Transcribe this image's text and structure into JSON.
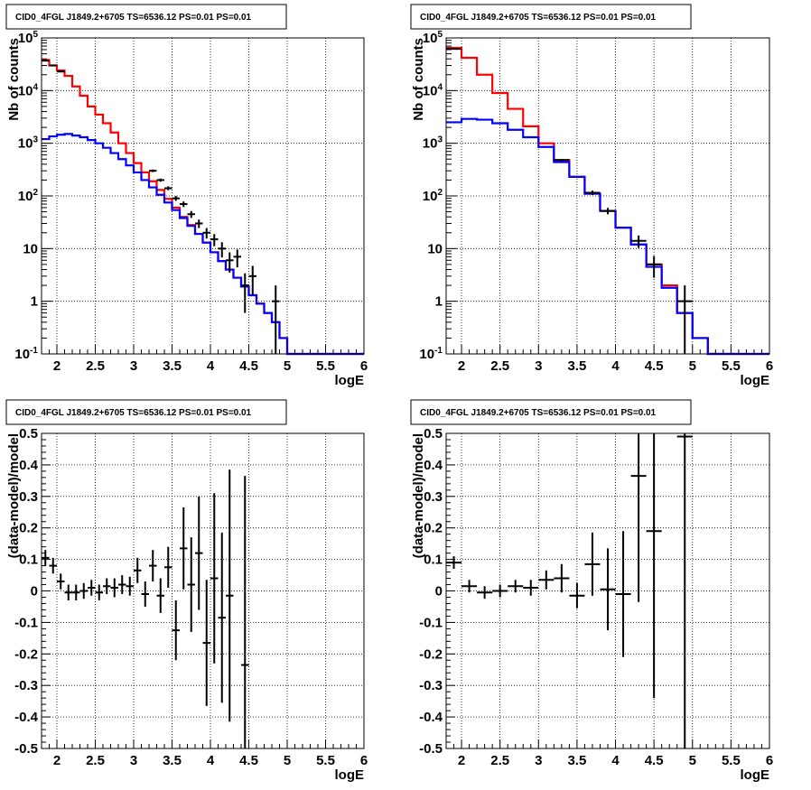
{
  "colors": {
    "model_total": "#ff0000",
    "model_source": "#0000ff",
    "data": "#000000",
    "grid": "#000000"
  },
  "chart_data": [
    {
      "type": "line",
      "title": "CID0_4FGL J1849.2+6705 TS=6536.12 PS=0.01 PS=0.01",
      "xlabel": "logE",
      "ylabel": "Nb of counts",
      "xlim": [
        1.8,
        6.0
      ],
      "ylim": [
        0.1,
        100000
      ],
      "yscale": "log",
      "grid": true,
      "x_ticks": [
        "2",
        "2.5",
        "3",
        "3.5",
        "4",
        "4.5",
        "5",
        "5.5",
        "6"
      ],
      "y_ticks": [
        "10^-1",
        "1",
        "10",
        "10^2",
        "10^3",
        "10^4",
        "10^5"
      ],
      "bin_width": 0.1,
      "series": [
        {
          "color": "red",
          "x": [
            1.85,
            1.95,
            2.05,
            2.15,
            2.25,
            2.35,
            2.45,
            2.55,
            2.65,
            2.75,
            2.85,
            2.95,
            3.05,
            3.15,
            3.25,
            3.35,
            3.45,
            3.55,
            3.65,
            3.75,
            3.85,
            3.95,
            4.05,
            4.15,
            4.25,
            4.35,
            4.45,
            4.55,
            4.65,
            4.75,
            4.85,
            4.95,
            5.05,
            5.15,
            5.25,
            5.35,
            5.45,
            5.55,
            5.65,
            5.75,
            5.85,
            5.95
          ],
          "values": [
            38000,
            30000,
            24000,
            19000,
            12000,
            8000,
            5000,
            3500,
            2400,
            1600,
            1000,
            650,
            420,
            280,
            190,
            130,
            88,
            60,
            40,
            28,
            19,
            13,
            8.5,
            5.8,
            4.0,
            2.8,
            1.9,
            1.3,
            0.9,
            0.6,
            0.4,
            0.2,
            0.1,
            0.1,
            0.1,
            0.1,
            0.1,
            0.1,
            0.1,
            0.1,
            0.1,
            0.1
          ]
        },
        {
          "color": "blue",
          "x": [
            1.85,
            1.95,
            2.05,
            2.15,
            2.25,
            2.35,
            2.45,
            2.55,
            2.65,
            2.75,
            2.85,
            2.95,
            3.05,
            3.15,
            3.25,
            3.35,
            3.45,
            3.55,
            3.65,
            3.75,
            3.85,
            3.95,
            4.05,
            4.15,
            4.25,
            4.35,
            4.45,
            4.55,
            4.65,
            4.75,
            4.85,
            4.95,
            5.05,
            5.15,
            5.25,
            5.35,
            5.45,
            5.55,
            5.65,
            5.75,
            5.85,
            5.95
          ],
          "values": [
            1200,
            1350,
            1450,
            1500,
            1400,
            1300,
            1150,
            1000,
            820,
            650,
            500,
            380,
            280,
            200,
            145,
            105,
            75,
            54,
            38,
            27,
            19,
            13,
            8.5,
            5.8,
            4.0,
            2.8,
            1.9,
            1.3,
            0.9,
            0.6,
            0.4,
            0.2,
            0.1,
            0.1,
            0.1,
            0.1,
            0.1,
            0.1,
            0.1,
            0.1,
            0.1,
            0.1
          ]
        }
      ],
      "data_points": [
        {
          "x": 1.85,
          "y": 37000,
          "err": 192
        },
        {
          "x": 1.95,
          "y": 30000,
          "err": 173
        },
        {
          "x": 2.05,
          "y": 23000,
          "err": 152
        },
        {
          "x": 3.25,
          "y": 300,
          "err": 17
        },
        {
          "x": 3.35,
          "y": 200,
          "err": 14
        },
        {
          "x": 3.45,
          "y": 140,
          "err": 12
        },
        {
          "x": 3.55,
          "y": 90,
          "err": 9.5
        },
        {
          "x": 3.65,
          "y": 70,
          "err": 8.4
        },
        {
          "x": 3.75,
          "y": 45,
          "err": 6.7
        },
        {
          "x": 3.85,
          "y": 30,
          "err": 5.5
        },
        {
          "x": 3.95,
          "y": 20,
          "err": 4.5
        },
        {
          "x": 4.05,
          "y": 15,
          "err": 3.9
        },
        {
          "x": 4.15,
          "y": 10,
          "err": 3.2
        },
        {
          "x": 4.25,
          "y": 6,
          "err": 2.5
        },
        {
          "x": 4.35,
          "y": 7,
          "err": 2.6
        },
        {
          "x": 4.45,
          "y": 2,
          "err": 1.4
        },
        {
          "x": 4.55,
          "y": 3,
          "err": 1.7
        },
        {
          "x": 4.85,
          "y": 1,
          "err": 1.0
        }
      ]
    },
    {
      "type": "line",
      "title": "CID0_4FGL J1849.2+6705 TS=6536.12 PS=0.01 PS=0.01",
      "xlabel": "logE",
      "ylabel": "Nb of counts",
      "xlim": [
        1.8,
        6.0
      ],
      "ylim": [
        0.1,
        100000
      ],
      "yscale": "log",
      "grid": true,
      "x_ticks": [
        "2",
        "2.5",
        "3",
        "3.5",
        "4",
        "4.5",
        "5",
        "5.5",
        "6"
      ],
      "y_ticks": [
        "10^-1",
        "1",
        "10",
        "10^2",
        "10^3",
        "10^4",
        "10^5"
      ],
      "bin_width": 0.2,
      "series": [
        {
          "color": "red",
          "x": [
            1.9,
            2.1,
            2.3,
            2.5,
            2.7,
            2.9,
            3.1,
            3.3,
            3.5,
            3.7,
            3.9,
            4.1,
            4.3,
            4.5,
            4.7,
            4.9,
            5.1,
            5.3,
            5.5,
            5.7,
            5.9
          ],
          "values": [
            65000,
            42000,
            20000,
            9000,
            4500,
            2100,
            1000,
            480,
            230,
            110,
            52,
            25,
            12,
            5,
            2,
            0.6,
            0.2,
            0.1,
            0.1,
            0.1,
            0.1
          ]
        },
        {
          "color": "blue",
          "x": [
            1.9,
            2.1,
            2.3,
            2.5,
            2.7,
            2.9,
            3.1,
            3.3,
            3.5,
            3.7,
            3.9,
            4.1,
            4.3,
            4.5,
            4.7,
            4.9,
            5.1,
            5.3,
            5.5,
            5.7,
            5.9
          ],
          "values": [
            2500,
            2900,
            2800,
            2400,
            1800,
            1300,
            850,
            440,
            230,
            110,
            52,
            25,
            12,
            4.5,
            1.8,
            0.6,
            0.2,
            0.1,
            0.1,
            0.1,
            0.1
          ]
        }
      ],
      "data_points": [
        {
          "x": 1.9,
          "y": 62000,
          "err": 250
        },
        {
          "x": 3.3,
          "y": 480,
          "err": 22
        },
        {
          "x": 3.7,
          "y": 115,
          "err": 11
        },
        {
          "x": 3.9,
          "y": 52,
          "err": 7.2
        },
        {
          "x": 4.3,
          "y": 14,
          "err": 3.7
        },
        {
          "x": 4.5,
          "y": 5,
          "err": 2.2
        },
        {
          "x": 4.9,
          "y": 1,
          "err": 1.0
        }
      ]
    },
    {
      "type": "scatter",
      "title": "CID0_4FGL J1849.2+6705 TS=6536.12 PS=0.01 PS=0.01",
      "xlabel": "logE",
      "ylabel": "(data-model)/model",
      "xlim": [
        1.8,
        6.0
      ],
      "ylim": [
        -0.5,
        0.5
      ],
      "grid": true,
      "x_ticks": [
        "2",
        "2.5",
        "3",
        "3.5",
        "4",
        "4.5",
        "5",
        "5.5",
        "6"
      ],
      "y_ticks": [
        "-0.5",
        "-0.4",
        "-0.3",
        "-0.2",
        "-0.1",
        "0",
        "0.1",
        "0.2",
        "0.3",
        "0.4",
        "0.5"
      ],
      "bin_width": 0.1,
      "data_points": [
        {
          "x": 1.85,
          "y": 0.105,
          "err": 0.025
        },
        {
          "x": 1.95,
          "y": 0.08,
          "err": 0.025
        },
        {
          "x": 2.05,
          "y": 0.03,
          "err": 0.025
        },
        {
          "x": 2.15,
          "y": -0.005,
          "err": 0.025
        },
        {
          "x": 2.25,
          "y": -0.005,
          "err": 0.025
        },
        {
          "x": 2.35,
          "y": 0.0,
          "err": 0.025
        },
        {
          "x": 2.45,
          "y": 0.01,
          "err": 0.025
        },
        {
          "x": 2.55,
          "y": -0.005,
          "err": 0.025
        },
        {
          "x": 2.65,
          "y": 0.015,
          "err": 0.025
        },
        {
          "x": 2.75,
          "y": 0.01,
          "err": 0.03
        },
        {
          "x": 2.85,
          "y": 0.02,
          "err": 0.03
        },
        {
          "x": 2.95,
          "y": 0.015,
          "err": 0.03
        },
        {
          "x": 3.05,
          "y": 0.065,
          "err": 0.04
        },
        {
          "x": 3.15,
          "y": -0.01,
          "err": 0.04
        },
        {
          "x": 3.25,
          "y": 0.08,
          "err": 0.05
        },
        {
          "x": 3.35,
          "y": -0.015,
          "err": 0.055
        },
        {
          "x": 3.45,
          "y": 0.075,
          "err": 0.065
        },
        {
          "x": 3.55,
          "y": -0.125,
          "err": 0.095
        },
        {
          "x": 3.65,
          "y": 0.135,
          "err": 0.13
        },
        {
          "x": 3.75,
          "y": 0.02,
          "err": 0.15
        },
        {
          "x": 3.85,
          "y": 0.12,
          "err": 0.18
        },
        {
          "x": 3.95,
          "y": -0.165,
          "err": 0.2
        },
        {
          "x": 4.05,
          "y": 0.04,
          "err": 0.27
        },
        {
          "x": 4.15,
          "y": -0.085,
          "err": 0.27
        },
        {
          "x": 4.25,
          "y": -0.015,
          "err": 0.4
        },
        {
          "x": 4.45,
          "y": -0.235,
          "err": 0.6
        }
      ]
    },
    {
      "type": "scatter",
      "title": "CID0_4FGL J1849.2+6705 TS=6536.12 PS=0.01 PS=0.01",
      "xlabel": "logE",
      "ylabel": "(data-model)/model",
      "xlim": [
        1.8,
        6.0
      ],
      "ylim": [
        -0.5,
        0.5
      ],
      "grid": true,
      "x_ticks": [
        "2",
        "2.5",
        "3",
        "3.5",
        "4",
        "4.5",
        "5",
        "5.5",
        "6"
      ],
      "y_ticks": [
        "-0.5",
        "-0.4",
        "-0.3",
        "-0.2",
        "-0.1",
        "0",
        "0.1",
        "0.2",
        "0.3",
        "0.4",
        "0.5"
      ],
      "bin_width": 0.2,
      "data_points": [
        {
          "x": 1.9,
          "y": 0.09,
          "err": 0.02
        },
        {
          "x": 2.1,
          "y": 0.015,
          "err": 0.02
        },
        {
          "x": 2.3,
          "y": -0.005,
          "err": 0.02
        },
        {
          "x": 2.5,
          "y": 0.0,
          "err": 0.02
        },
        {
          "x": 2.7,
          "y": 0.015,
          "err": 0.02
        },
        {
          "x": 2.9,
          "y": 0.01,
          "err": 0.025
        },
        {
          "x": 3.1,
          "y": 0.035,
          "err": 0.03
        },
        {
          "x": 3.3,
          "y": 0.04,
          "err": 0.045
        },
        {
          "x": 3.5,
          "y": -0.015,
          "err": 0.04
        },
        {
          "x": 3.7,
          "y": 0.085,
          "err": 0.1
        },
        {
          "x": 3.9,
          "y": 0.005,
          "err": 0.13
        },
        {
          "x": 4.1,
          "y": -0.01,
          "err": 0.2
        },
        {
          "x": 4.3,
          "y": 0.365,
          "err": 0.4
        },
        {
          "x": 4.5,
          "y": 0.19,
          "err": 0.53
        },
        {
          "x": 4.9,
          "y": 0.49,
          "err": 1.0
        }
      ]
    }
  ]
}
